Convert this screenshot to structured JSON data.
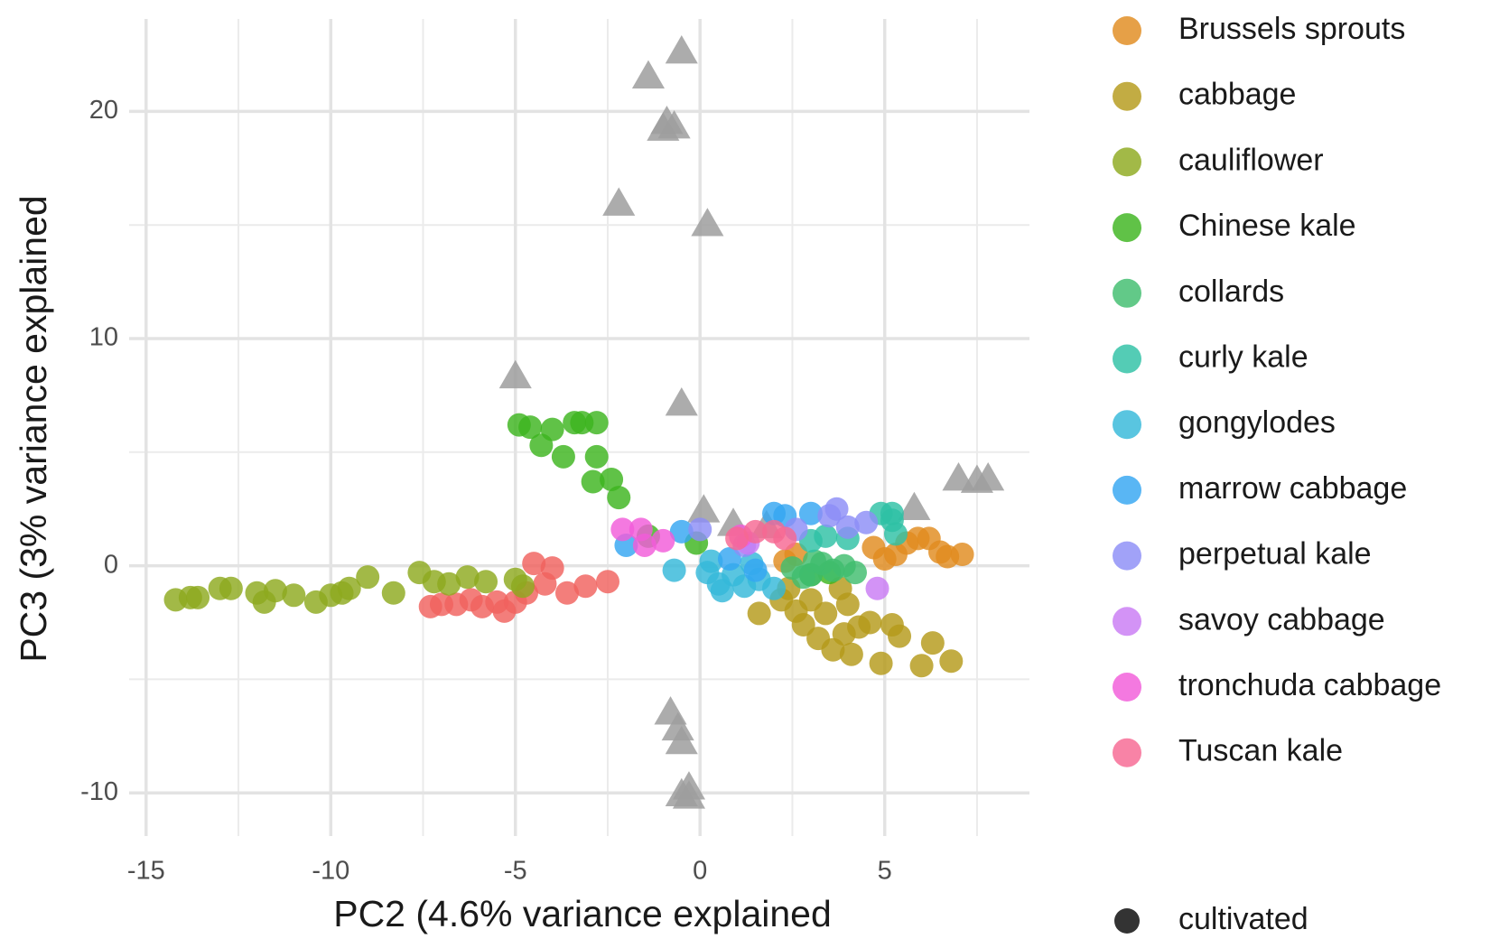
{
  "chart_data": {
    "type": "scatter",
    "x_label": "PC2 (4.6% variance explained",
    "y_label": "PC3 (3% variance explained",
    "xlim": [
      -15.46,
      8.92
    ],
    "ylim": [
      -11.9,
      24.07
    ],
    "xticks": [
      -15,
      -10,
      -5,
      0,
      5
    ],
    "yticks": [
      -10,
      0,
      10,
      20
    ],
    "x_minor_ticks": [
      -12.5,
      -7.5,
      -2.5,
      2.5,
      7.5
    ],
    "y_minor_ticks": [
      -5,
      5,
      15
    ],
    "grid": true,
    "legend_position": "right",
    "shape_legend": [
      "cultivated"
    ],
    "series": [
      {
        "color": "#9e9e9e",
        "shape": "triangle",
        "x": [
          -0.5,
          -1.4,
          -0.9,
          -0.7,
          -1.0,
          -2.2,
          0.2,
          -5.0,
          -0.5,
          0.1,
          0.9,
          1.8,
          5.8,
          7.0,
          7.5,
          7.8,
          -0.8,
          -0.6,
          -0.5,
          -0.3,
          -0.3,
          -0.5
        ],
        "values": [
          22.6,
          21.5,
          19.5,
          19.3,
          19.2,
          15.9,
          15.0,
          8.3,
          7.1,
          2.4,
          1.8,
          1.7,
          2.5,
          3.8,
          3.7,
          3.8,
          -6.5,
          -7.2,
          -7.8,
          -9.8,
          -10.2,
          -10.1
        ]
      },
      {
        "color": "#f0625e",
        "x": [
          -7.3,
          -7.0,
          -6.6,
          -6.2,
          -5.9,
          -5.5,
          -5.3,
          -5.0,
          -4.7,
          -4.5,
          -4.2,
          -4.0,
          -3.6,
          -3.1,
          -2.5
        ],
        "values": [
          -1.8,
          -1.7,
          -1.7,
          -1.5,
          -1.8,
          -1.6,
          -2.0,
          -1.6,
          -1.2,
          0.1,
          -0.8,
          -0.1,
          -1.2,
          -0.9,
          -0.7
        ]
      },
      {
        "name": "Brussels sprouts",
        "color": "#e08b1f",
        "x": [
          2.3,
          4.7,
          5.0,
          5.3,
          5.6,
          5.9,
          6.2,
          6.5,
          6.7,
          7.1,
          2.6
        ],
        "values": [
          0.2,
          0.8,
          0.3,
          0.5,
          1.0,
          1.2,
          1.2,
          0.6,
          0.4,
          0.5,
          0.5
        ]
      },
      {
        "name": "cabbage",
        "color": "#b59a1a",
        "x": [
          1.6,
          2.2,
          2.4,
          2.6,
          2.8,
          3.0,
          3.2,
          3.4,
          3.6,
          3.9,
          4.1,
          4.3,
          4.6,
          4.9,
          5.2,
          5.4,
          6.0,
          6.3,
          6.8,
          3.8,
          4.0
        ],
        "values": [
          -2.1,
          -1.5,
          -1.0,
          -2.0,
          -2.6,
          -1.5,
          -3.2,
          -2.1,
          -3.7,
          -3.0,
          -3.9,
          -2.7,
          -2.5,
          -4.3,
          -2.6,
          -3.1,
          -4.4,
          -3.4,
          -4.2,
          -1.0,
          -1.7
        ]
      },
      {
        "name": "cauliflower",
        "color": "#8daa1f",
        "x": [
          -14.2,
          -13.8,
          -13.6,
          -13.0,
          -12.7,
          -12.0,
          -11.8,
          -11.5,
          -11.0,
          -10.4,
          -10.0,
          -9.7,
          -9.5,
          -9.0,
          -8.3,
          -7.6,
          -7.2,
          -6.8,
          -6.3,
          -5.8,
          -5.0,
          -4.8
        ],
        "values": [
          -1.5,
          -1.4,
          -1.4,
          -1.0,
          -1.0,
          -1.2,
          -1.6,
          -1.1,
          -1.3,
          -1.6,
          -1.3,
          -1.2,
          -1.0,
          -0.5,
          -1.2,
          -0.3,
          -0.7,
          -0.8,
          -0.5,
          -0.7,
          -0.6,
          -0.9
        ]
      },
      {
        "name": "Chinese kale",
        "color": "#3db51e",
        "x": [
          -4.9,
          -4.6,
          -4.3,
          -4.0,
          -3.7,
          -3.4,
          -3.2,
          -2.8,
          -2.8,
          -2.9,
          -2.4,
          -2.2,
          -1.4,
          -0.1,
          3.0,
          3.5
        ],
        "values": [
          6.2,
          6.1,
          5.3,
          6.0,
          4.8,
          6.3,
          6.3,
          6.3,
          4.8,
          3.7,
          3.8,
          3.0,
          1.3,
          1.0,
          -0.4,
          -0.3
        ]
      },
      {
        "name": "collards",
        "color": "#3fbd6e",
        "x": [
          2.5,
          3.0,
          3.3,
          3.6,
          3.9,
          4.2,
          3.1,
          2.8
        ],
        "values": [
          -0.1,
          -0.4,
          0.1,
          -0.2,
          0.0,
          -0.3,
          0.2,
          -0.5
        ]
      },
      {
        "name": "curly kale",
        "color": "#2ec1a5",
        "x": [
          3.0,
          3.4,
          4.0,
          4.9,
          5.2,
          5.3,
          5.2
        ],
        "values": [
          1.1,
          1.3,
          1.2,
          2.3,
          2.3,
          1.4,
          2.0
        ]
      },
      {
        "name": "gongylodes",
        "color": "#34b8d9",
        "x": [
          -0.7,
          0.2,
          0.5,
          0.6,
          0.9,
          1.2,
          1.4,
          1.6,
          2.0,
          0.3
        ],
        "values": [
          -0.2,
          -0.3,
          -0.8,
          -1.1,
          -0.4,
          -0.9,
          0.1,
          -0.6,
          -1.0,
          0.2
        ]
      },
      {
        "name": "marrow cabbage",
        "color": "#35a6f2",
        "x": [
          -2.0,
          -0.5,
          2.0,
          2.3,
          3.0,
          1.5,
          0.8
        ],
        "values": [
          0.9,
          1.5,
          2.3,
          2.2,
          2.3,
          -0.2,
          0.3
        ]
      },
      {
        "name": "perpetual kale",
        "color": "#8c8df6",
        "x": [
          0.0,
          2.6,
          3.5,
          3.7,
          4.0,
          4.5,
          1.2
        ],
        "values": [
          1.6,
          1.6,
          2.2,
          2.5,
          1.7,
          1.9,
          0.9
        ]
      },
      {
        "name": "savoy cabbage",
        "color": "#c97bf4",
        "x": [
          4.8,
          1.3
        ],
        "values": [
          -1.0,
          1.0
        ]
      },
      {
        "name": "tronchuda cabbage",
        "color": "#f25bd9",
        "x": [
          -2.1,
          -1.6,
          -1.5,
          -1.0,
          1.1
        ],
        "values": [
          1.6,
          1.6,
          0.9,
          1.1,
          1.3
        ]
      },
      {
        "name": "Tuscan kale",
        "color": "#f76893",
        "x": [
          1.5,
          2.0,
          2.3,
          1.0
        ],
        "values": [
          1.5,
          1.5,
          1.2,
          1.2
        ]
      }
    ]
  }
}
